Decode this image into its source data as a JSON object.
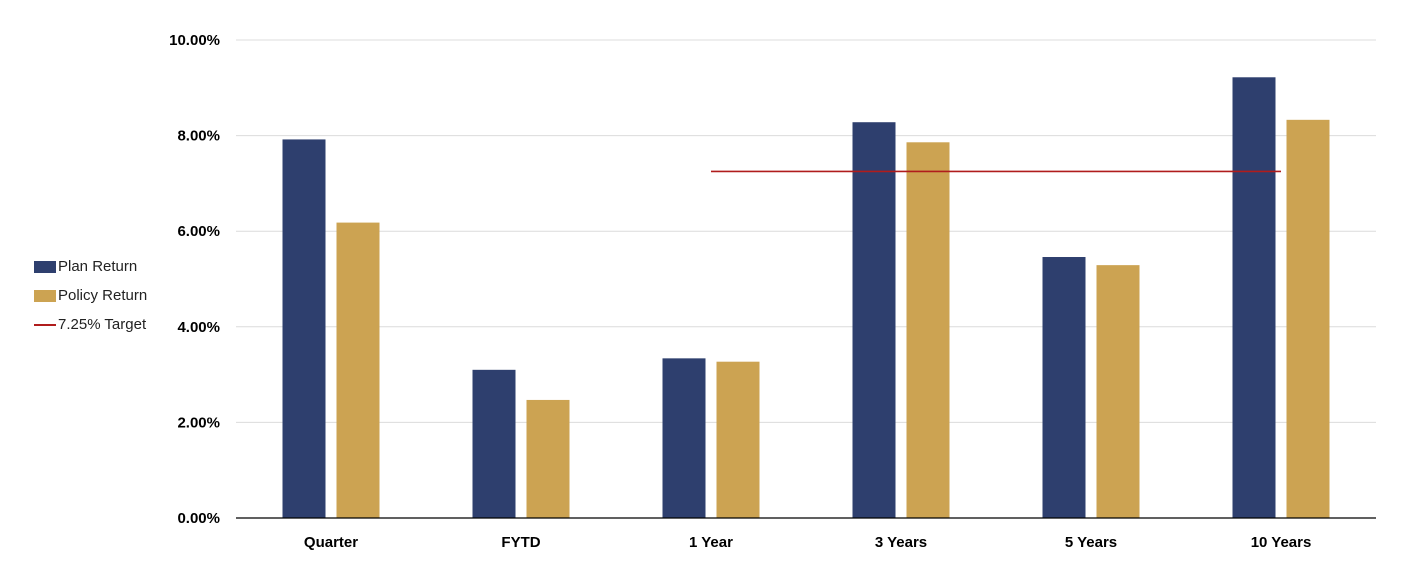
{
  "chart_data": {
    "type": "bar",
    "title": "",
    "xlabel": "",
    "ylabel": "",
    "categories": [
      "Quarter",
      "FYTD",
      "1 Year",
      "3 Years",
      "5 Years",
      "10 Years"
    ],
    "series": [
      {
        "name": "Plan Return",
        "values": [
          7.92,
          3.1,
          3.34,
          8.28,
          5.46,
          9.22
        ],
        "color": "#2e3f6e"
      },
      {
        "name": "Policy Return",
        "values": [
          6.18,
          2.47,
          3.27,
          7.86,
          5.29,
          8.33
        ],
        "color": "#cca352"
      }
    ],
    "target": {
      "name": "7.25% Target",
      "value": 7.25,
      "start_category": "1 Year",
      "end_category": "10 Years",
      "color": "#b01c1c"
    },
    "ylim": [
      0,
      10
    ],
    "yticks": [
      "0.00%",
      "2.00%",
      "4.00%",
      "6.00%",
      "8.00%",
      "10.00%"
    ],
    "grid": true,
    "legend_position": "left"
  }
}
